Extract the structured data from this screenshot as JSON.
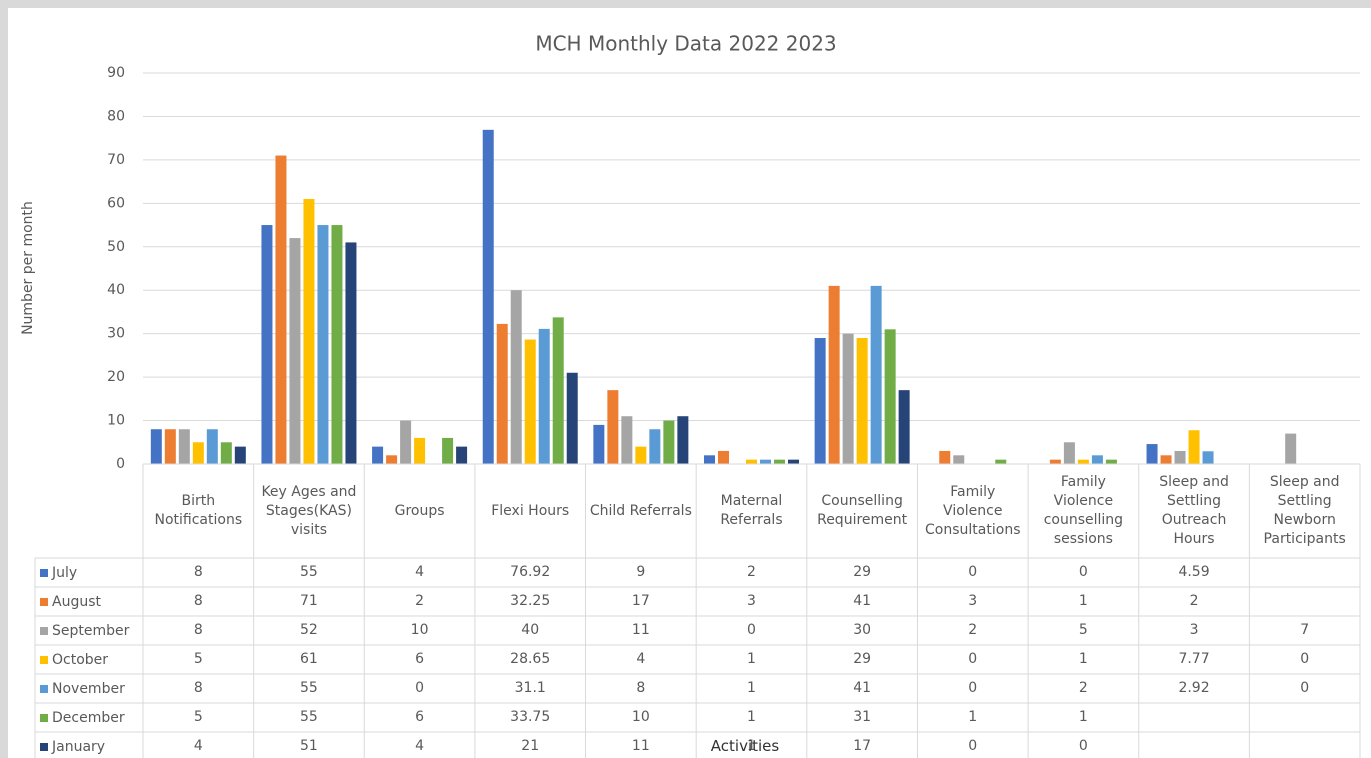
{
  "chart_data": {
    "type": "bar",
    "title": "MCH Monthly Data 2022 2023",
    "y_label": "Number per month",
    "categories": [
      "Birth Notifications",
      "Key Ages and Stages(KAS) visits",
      "Groups",
      "Flexi Hours",
      "Child Referrals",
      "Maternal Referrals",
      "Counselling Requirement",
      "Family Violence Consultations",
      "Family Violence counselling sessions",
      "Sleep and Settling Outreach Hours",
      "Sleep and Settling Newborn Participants"
    ],
    "series": [
      {
        "name": "July",
        "color": "#4472c4",
        "values": [
          8,
          55,
          4,
          76.92,
          9,
          2,
          29,
          0,
          0,
          4.59,
          null
        ]
      },
      {
        "name": "August",
        "color": "#ed7d31",
        "values": [
          8,
          71,
          2,
          32.25,
          17,
          3,
          41,
          3,
          1,
          2,
          null
        ]
      },
      {
        "name": "September",
        "color": "#a5a5a5",
        "values": [
          8,
          52,
          10,
          40,
          11,
          0,
          30,
          2,
          5,
          3,
          7
        ]
      },
      {
        "name": "October",
        "color": "#ffc000",
        "values": [
          5,
          61,
          6,
          28.65,
          4,
          1,
          29,
          0,
          1,
          7.77,
          0
        ]
      },
      {
        "name": "November",
        "color": "#5b9bd5",
        "values": [
          8,
          55,
          0,
          31.1,
          8,
          1,
          41,
          0,
          2,
          2.92,
          0
        ]
      },
      {
        "name": "December",
        "color": "#70ad47",
        "values": [
          5,
          55,
          6,
          33.75,
          10,
          1,
          31,
          1,
          1,
          null,
          null
        ]
      },
      {
        "name": "January",
        "color": "#264478",
        "values": [
          4,
          51,
          4,
          21,
          11,
          1,
          17,
          0,
          0,
          null,
          null
        ]
      }
    ],
    "ylim": [
      0,
      90
    ],
    "yticks": [
      0,
      10,
      20,
      30,
      40,
      50,
      60,
      70,
      80,
      90
    ],
    "grid": true,
    "overlay_text": "Activities"
  }
}
